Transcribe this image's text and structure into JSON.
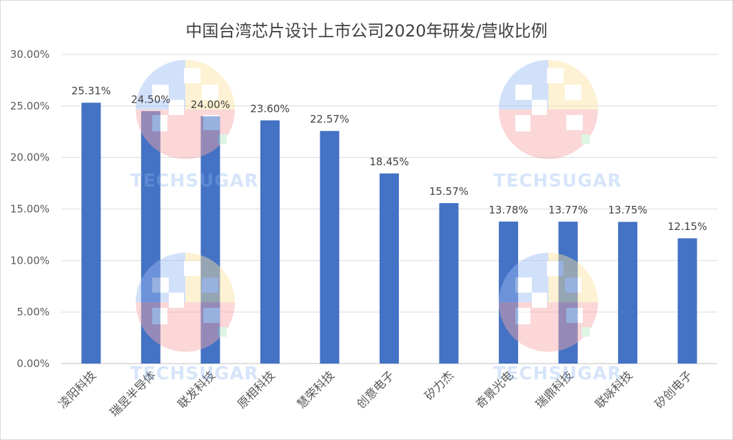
{
  "chart_data": {
    "type": "bar",
    "title": "中国台湾芯片设计上市公司2020年研发/营收比例",
    "categories": [
      "凌阳科技",
      "瑞昱半导体",
      "联发科技",
      "原相科技",
      "慧荣科技",
      "创意电子",
      "矽力杰",
      "奇景光电",
      "瑞鼎科技",
      "联咏科技",
      "矽创电子"
    ],
    "values": [
      25.31,
      24.5,
      24.0,
      23.6,
      22.57,
      18.45,
      15.57,
      13.78,
      13.77,
      13.75,
      12.15
    ],
    "data_labels": [
      "25.31%",
      "24.50%",
      "24.00%",
      "23.60%",
      "22.57%",
      "18.45%",
      "15.57%",
      "13.78%",
      "13.77%",
      "13.75%",
      "12.15%"
    ],
    "y_ticks": [
      "0.00%",
      "5.00%",
      "10.00%",
      "15.00%",
      "20.00%",
      "25.00%",
      "30.00%"
    ],
    "ylim": [
      0,
      30
    ],
    "grid": true,
    "bar_color": "#4472c4"
  },
  "watermark": {
    "text": "TECHSUGAR"
  }
}
